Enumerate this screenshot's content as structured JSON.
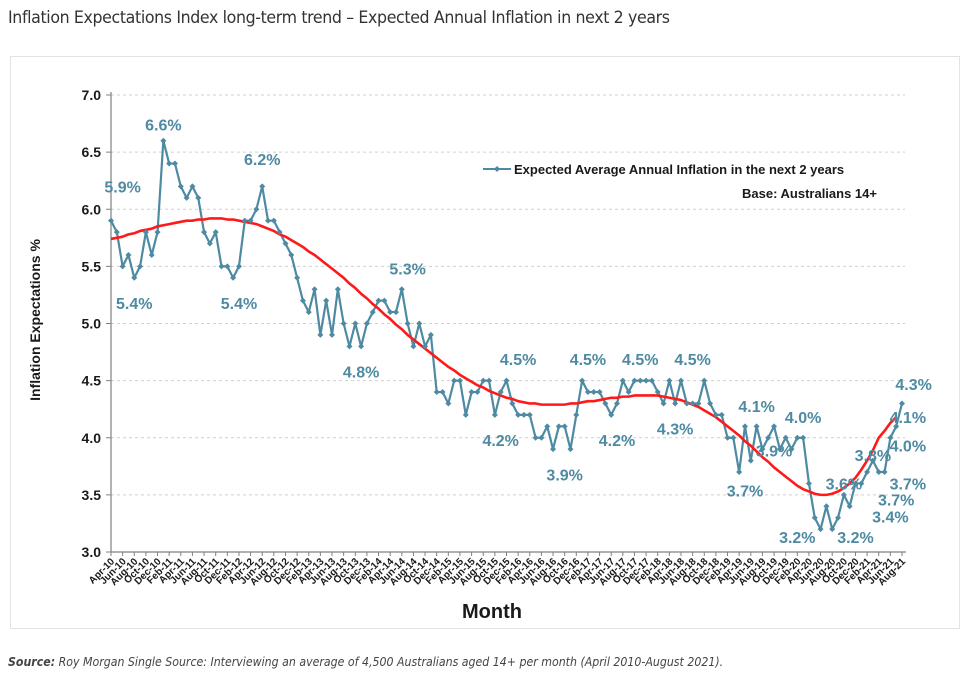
{
  "page": {
    "title": "Inflation Expectations Index long-term trend – Expected Annual Inflation in next 2 years",
    "source_label": "Source:",
    "source_text": " Roy Morgan Single Source: Interviewing an average of 4,500 Australians aged 14+ per month (April 2010-August 2021)."
  },
  "colors": {
    "series": "#4e8aa2",
    "trend": "#ff1a1a",
    "label": "#4e8aa2",
    "grid": "#d0d0d0",
    "axis": "#808080",
    "text": "#1a1a1a"
  },
  "chart_data": {
    "type": "line",
    "title": "",
    "xlabel": "Month",
    "ylabel": "Inflation Expectations %",
    "ylim": [
      3.0,
      7.0
    ],
    "yticks": [
      "3.0",
      "3.5",
      "4.0",
      "4.5",
      "5.0",
      "5.5",
      "6.0",
      "6.5",
      "7.0"
    ],
    "grid": true,
    "legend": {
      "position": "top-right",
      "entry": "Expected Average Annual Inflation in the next 2 years",
      "note": "Base: Australians 14+"
    },
    "x": [
      "Apr-10",
      "May-10",
      "Jun-10",
      "Jul-10",
      "Aug-10",
      "Sep-10",
      "Oct-10",
      "Nov-10",
      "Dec-10",
      "Jan-11",
      "Feb-11",
      "Mar-11",
      "Apr-11",
      "May-11",
      "Jun-11",
      "Jul-11",
      "Aug-11",
      "Sep-11",
      "Oct-11",
      "Nov-11",
      "Dec-11",
      "Jan-12",
      "Feb-12",
      "Mar-12",
      "Apr-12",
      "May-12",
      "Jun-12",
      "Jul-12",
      "Aug-12",
      "Sep-12",
      "Oct-12",
      "Nov-12",
      "Dec-12",
      "Jan-13",
      "Feb-13",
      "Mar-13",
      "Apr-13",
      "May-13",
      "Jun-13",
      "Jul-13",
      "Aug-13",
      "Sep-13",
      "Oct-13",
      "Nov-13",
      "Dec-13",
      "Jan-14",
      "Feb-14",
      "Mar-14",
      "Apr-14",
      "May-14",
      "Jun-14",
      "Jul-14",
      "Aug-14",
      "Sep-14",
      "Oct-14",
      "Nov-14",
      "Dec-14",
      "Jan-15",
      "Feb-15",
      "Mar-15",
      "Apr-15",
      "May-15",
      "Jun-15",
      "Jul-15",
      "Aug-15",
      "Sep-15",
      "Oct-15",
      "Nov-15",
      "Dec-15",
      "Jan-16",
      "Feb-16",
      "Mar-16",
      "Apr-16",
      "May-16",
      "Jun-16",
      "Jul-16",
      "Aug-16",
      "Sep-16",
      "Oct-16",
      "Nov-16",
      "Dec-16",
      "Jan-17",
      "Feb-17",
      "Mar-17",
      "Apr-17",
      "May-17",
      "Jun-17",
      "Jul-17",
      "Aug-17",
      "Sep-17",
      "Oct-17",
      "Nov-17",
      "Dec-17",
      "Jan-18",
      "Feb-18",
      "Mar-18",
      "Apr-18",
      "May-18",
      "Jun-18",
      "Jul-18",
      "Aug-18",
      "Sep-18",
      "Oct-18",
      "Nov-18",
      "Dec-18",
      "Jan-19",
      "Feb-19",
      "Mar-19",
      "Apr-19",
      "May-19",
      "Jun-19",
      "Jul-19",
      "Aug-19",
      "Sep-19",
      "Oct-19",
      "Nov-19",
      "Dec-19",
      "Jan-20",
      "Feb-20",
      "Mar-20",
      "Apr-20",
      "May-20",
      "Jun-20",
      "Jul-20",
      "Aug-20",
      "Sep-20",
      "Oct-20",
      "Nov-20",
      "Dec-20",
      "Jan-21",
      "Feb-21",
      "Mar-21",
      "Apr-21",
      "May-21",
      "Jun-21",
      "Jul-21",
      "Aug-21"
    ],
    "xtick_labels": [
      "Apr-10",
      "Jun-10",
      "Aug-10",
      "Oct-10",
      "Dec-10",
      "Feb-11",
      "Apr-11",
      "Jun-11",
      "Aug-11",
      "Oct-11",
      "Dec-11",
      "Feb-12",
      "Apr-12",
      "Jun-12",
      "Aug-12",
      "Oct-12",
      "Dec-12",
      "Feb-13",
      "Apr-13",
      "Jun-13",
      "Aug-13",
      "Oct-13",
      "Dec-13",
      "Feb-14",
      "Apr-14",
      "Jun-14",
      "Aug-14",
      "Oct-14",
      "Dec-14",
      "Feb-15",
      "Apr-15",
      "Jun-15",
      "Aug-15",
      "Oct-15",
      "Dec-15",
      "Feb-16",
      "Apr-16",
      "Jun-16",
      "Aug-16",
      "Oct-16",
      "Dec-16",
      "Feb-17",
      "Apr-17",
      "Jun-17",
      "Aug-17",
      "Oct-17",
      "Dec-17",
      "Feb-18",
      "Apr-18",
      "Jun-18",
      "Aug-18",
      "Oct-18",
      "Dec-18",
      "Feb-19",
      "Apr-19",
      "Jun-19",
      "Aug-19",
      "Oct-19",
      "Dec-19",
      "Feb-20",
      "Apr-20",
      "Jun-20",
      "Aug-20",
      "Oct-20",
      "Dec-20",
      "Feb-21",
      "Apr-21",
      "Jun-21",
      "Aug-21"
    ],
    "series": [
      {
        "name": "Expected Average Annual Inflation in the next 2 years",
        "values": [
          5.9,
          5.8,
          5.5,
          5.6,
          5.4,
          5.5,
          5.8,
          5.6,
          5.8,
          6.6,
          6.4,
          6.4,
          6.2,
          6.1,
          6.2,
          6.1,
          5.8,
          5.7,
          5.8,
          5.5,
          5.5,
          5.4,
          5.5,
          5.9,
          5.9,
          6.0,
          6.2,
          5.9,
          5.9,
          5.8,
          5.7,
          5.6,
          5.4,
          5.2,
          5.1,
          5.3,
          4.9,
          5.2,
          4.9,
          5.3,
          5.0,
          4.8,
          5.0,
          4.8,
          5.0,
          5.1,
          5.2,
          5.2,
          5.1,
          5.1,
          5.3,
          5.0,
          4.8,
          5.0,
          4.8,
          4.9,
          4.4,
          4.4,
          4.3,
          4.5,
          4.5,
          4.2,
          4.4,
          4.4,
          4.5,
          4.5,
          4.2,
          4.4,
          4.5,
          4.3,
          4.2,
          4.2,
          4.2,
          4.0,
          4.0,
          4.1,
          3.9,
          4.1,
          4.1,
          3.9,
          4.2,
          4.5,
          4.4,
          4.4,
          4.4,
          4.3,
          4.2,
          4.3,
          4.5,
          4.4,
          4.5,
          4.5,
          4.5,
          4.5,
          4.4,
          4.3,
          4.5,
          4.3,
          4.5,
          4.3,
          4.3,
          4.3,
          4.5,
          4.3,
          4.2,
          4.2,
          4.0,
          4.0,
          3.7,
          4.1,
          3.8,
          4.1,
          3.9,
          4.0,
          4.1,
          3.9,
          4.0,
          3.9,
          4.0,
          4.0,
          3.6,
          3.3,
          3.2,
          3.4,
          3.2,
          3.3,
          3.5,
          3.4,
          3.6,
          3.6,
          3.7,
          3.8,
          3.7,
          3.7,
          4.0,
          4.1,
          4.3
        ]
      },
      {
        "name": "Trend",
        "values": [
          5.74,
          5.75,
          5.76,
          5.78,
          5.79,
          5.81,
          5.82,
          5.83,
          5.85,
          5.86,
          5.87,
          5.88,
          5.89,
          5.9,
          5.9,
          5.91,
          5.91,
          5.92,
          5.92,
          5.92,
          5.91,
          5.91,
          5.9,
          5.89,
          5.88,
          5.87,
          5.85,
          5.83,
          5.81,
          5.78,
          5.76,
          5.73,
          5.7,
          5.67,
          5.63,
          5.6,
          5.56,
          5.52,
          5.48,
          5.44,
          5.4,
          5.35,
          5.31,
          5.26,
          5.22,
          5.17,
          5.13,
          5.08,
          5.04,
          4.99,
          4.95,
          4.9,
          4.86,
          4.82,
          4.78,
          4.74,
          4.7,
          4.66,
          4.62,
          4.59,
          4.55,
          4.52,
          4.49,
          4.46,
          4.44,
          4.41,
          4.39,
          4.37,
          4.35,
          4.34,
          4.32,
          4.31,
          4.3,
          4.3,
          4.29,
          4.29,
          4.29,
          4.29,
          4.29,
          4.3,
          4.3,
          4.31,
          4.32,
          4.32,
          4.33,
          4.34,
          4.35,
          4.35,
          4.36,
          4.36,
          4.37,
          4.37,
          4.37,
          4.37,
          4.37,
          4.36,
          4.35,
          4.34,
          4.33,
          4.31,
          4.29,
          4.27,
          4.24,
          4.21,
          4.18,
          4.14,
          4.1,
          4.06,
          4.02,
          3.97,
          3.93,
          3.88,
          3.83,
          3.79,
          3.74,
          3.7,
          3.66,
          3.62,
          3.58,
          3.55,
          3.53,
          3.51,
          3.5,
          3.5,
          3.51,
          3.53,
          3.56,
          3.6,
          3.65,
          3.72,
          3.8,
          3.89,
          4.0,
          4.06,
          4.13,
          4.18
        ]
      }
    ],
    "annotations": [
      {
        "text": "5.9%",
        "x": "Jun-10",
        "y": 6.2
      },
      {
        "text": "5.4%",
        "x": "Aug-10",
        "y": 5.18
      },
      {
        "text": "6.6%",
        "x": "Jan-11",
        "y": 6.74
      },
      {
        "text": "6.2%",
        "x": "Jun-12",
        "y": 6.44
      },
      {
        "text": "5.4%",
        "x": "Feb-12",
        "y": 5.18
      },
      {
        "text": "5.3%",
        "x": "Jul-14",
        "y": 5.48
      },
      {
        "text": "4.8%",
        "x": "Nov-13",
        "y": 4.58
      },
      {
        "text": "4.5%",
        "x": "Feb-16",
        "y": 4.69
      },
      {
        "text": "4.2%",
        "x": "Nov-15",
        "y": 3.98
      },
      {
        "text": "3.9%",
        "x": "Oct-16",
        "y": 3.68
      },
      {
        "text": "4.5%",
        "x": "Feb-17",
        "y": 4.69
      },
      {
        "text": "4.2%",
        "x": "Jul-17",
        "y": 3.98
      },
      {
        "text": "4.5%",
        "x": "Nov-17",
        "y": 4.69
      },
      {
        "text": "4.5%",
        "x": "Aug-18",
        "y": 4.69
      },
      {
        "text": "4.3%",
        "x": "May-18",
        "y": 4.08
      },
      {
        "text": "4.1%",
        "x": "Jul-19",
        "y": 4.28
      },
      {
        "text": "3.7%",
        "x": "May-19",
        "y": 3.54
      },
      {
        "text": "3.9%",
        "x": "Oct-19",
        "y": 3.89
      },
      {
        "text": "4.0%",
        "x": "Mar-20",
        "y": 4.18
      },
      {
        "text": "3.2%",
        "x": "Feb-20",
        "y": 3.13
      },
      {
        "text": "3.6%",
        "x": "Oct-20",
        "y": 3.6
      },
      {
        "text": "3.2%",
        "x": "Dec-20",
        "y": 3.13
      },
      {
        "text": "3.8%",
        "x": "Mar-21",
        "y": 3.85
      },
      {
        "text": "3.4%",
        "x": "Jun-21",
        "y": 3.31
      },
      {
        "text": "3.7%",
        "x": "Jul-21",
        "y": 3.46
      },
      {
        "text": "3.7%",
        "x": "Sep-21",
        "y": 3.6
      },
      {
        "text": "4.0%",
        "x": "Sep-21",
        "y": 3.93
      },
      {
        "text": "4.1%",
        "x": "Sep-21",
        "y": 4.18
      },
      {
        "text": "4.3%",
        "x": "Oct-21",
        "y": 4.47
      }
    ]
  }
}
